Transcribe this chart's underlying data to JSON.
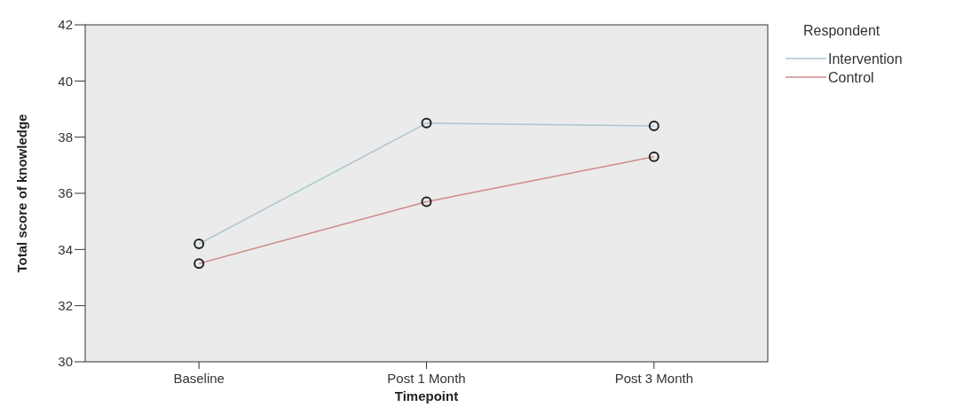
{
  "chart_data": {
    "type": "line",
    "xlabel": "Timepoint",
    "ylabel": "Total score of knowledge",
    "legend_title": "Respondent",
    "categories": [
      "Baseline",
      "Post 1 Month",
      "Post 3 Month"
    ],
    "series": [
      {
        "name": "Intervention",
        "color": "#a9c6d0",
        "values": [
          34.2,
          38.5,
          38.4
        ]
      },
      {
        "name": "Control",
        "color": "#d08a8a",
        "values": [
          33.5,
          35.7,
          37.3
        ]
      }
    ],
    "ylim": [
      30,
      42
    ],
    "yticks": [
      30,
      32,
      34,
      36,
      38,
      40,
      42
    ],
    "grid": false,
    "legend": "right",
    "marker": "circle",
    "line_style": "solid"
  }
}
